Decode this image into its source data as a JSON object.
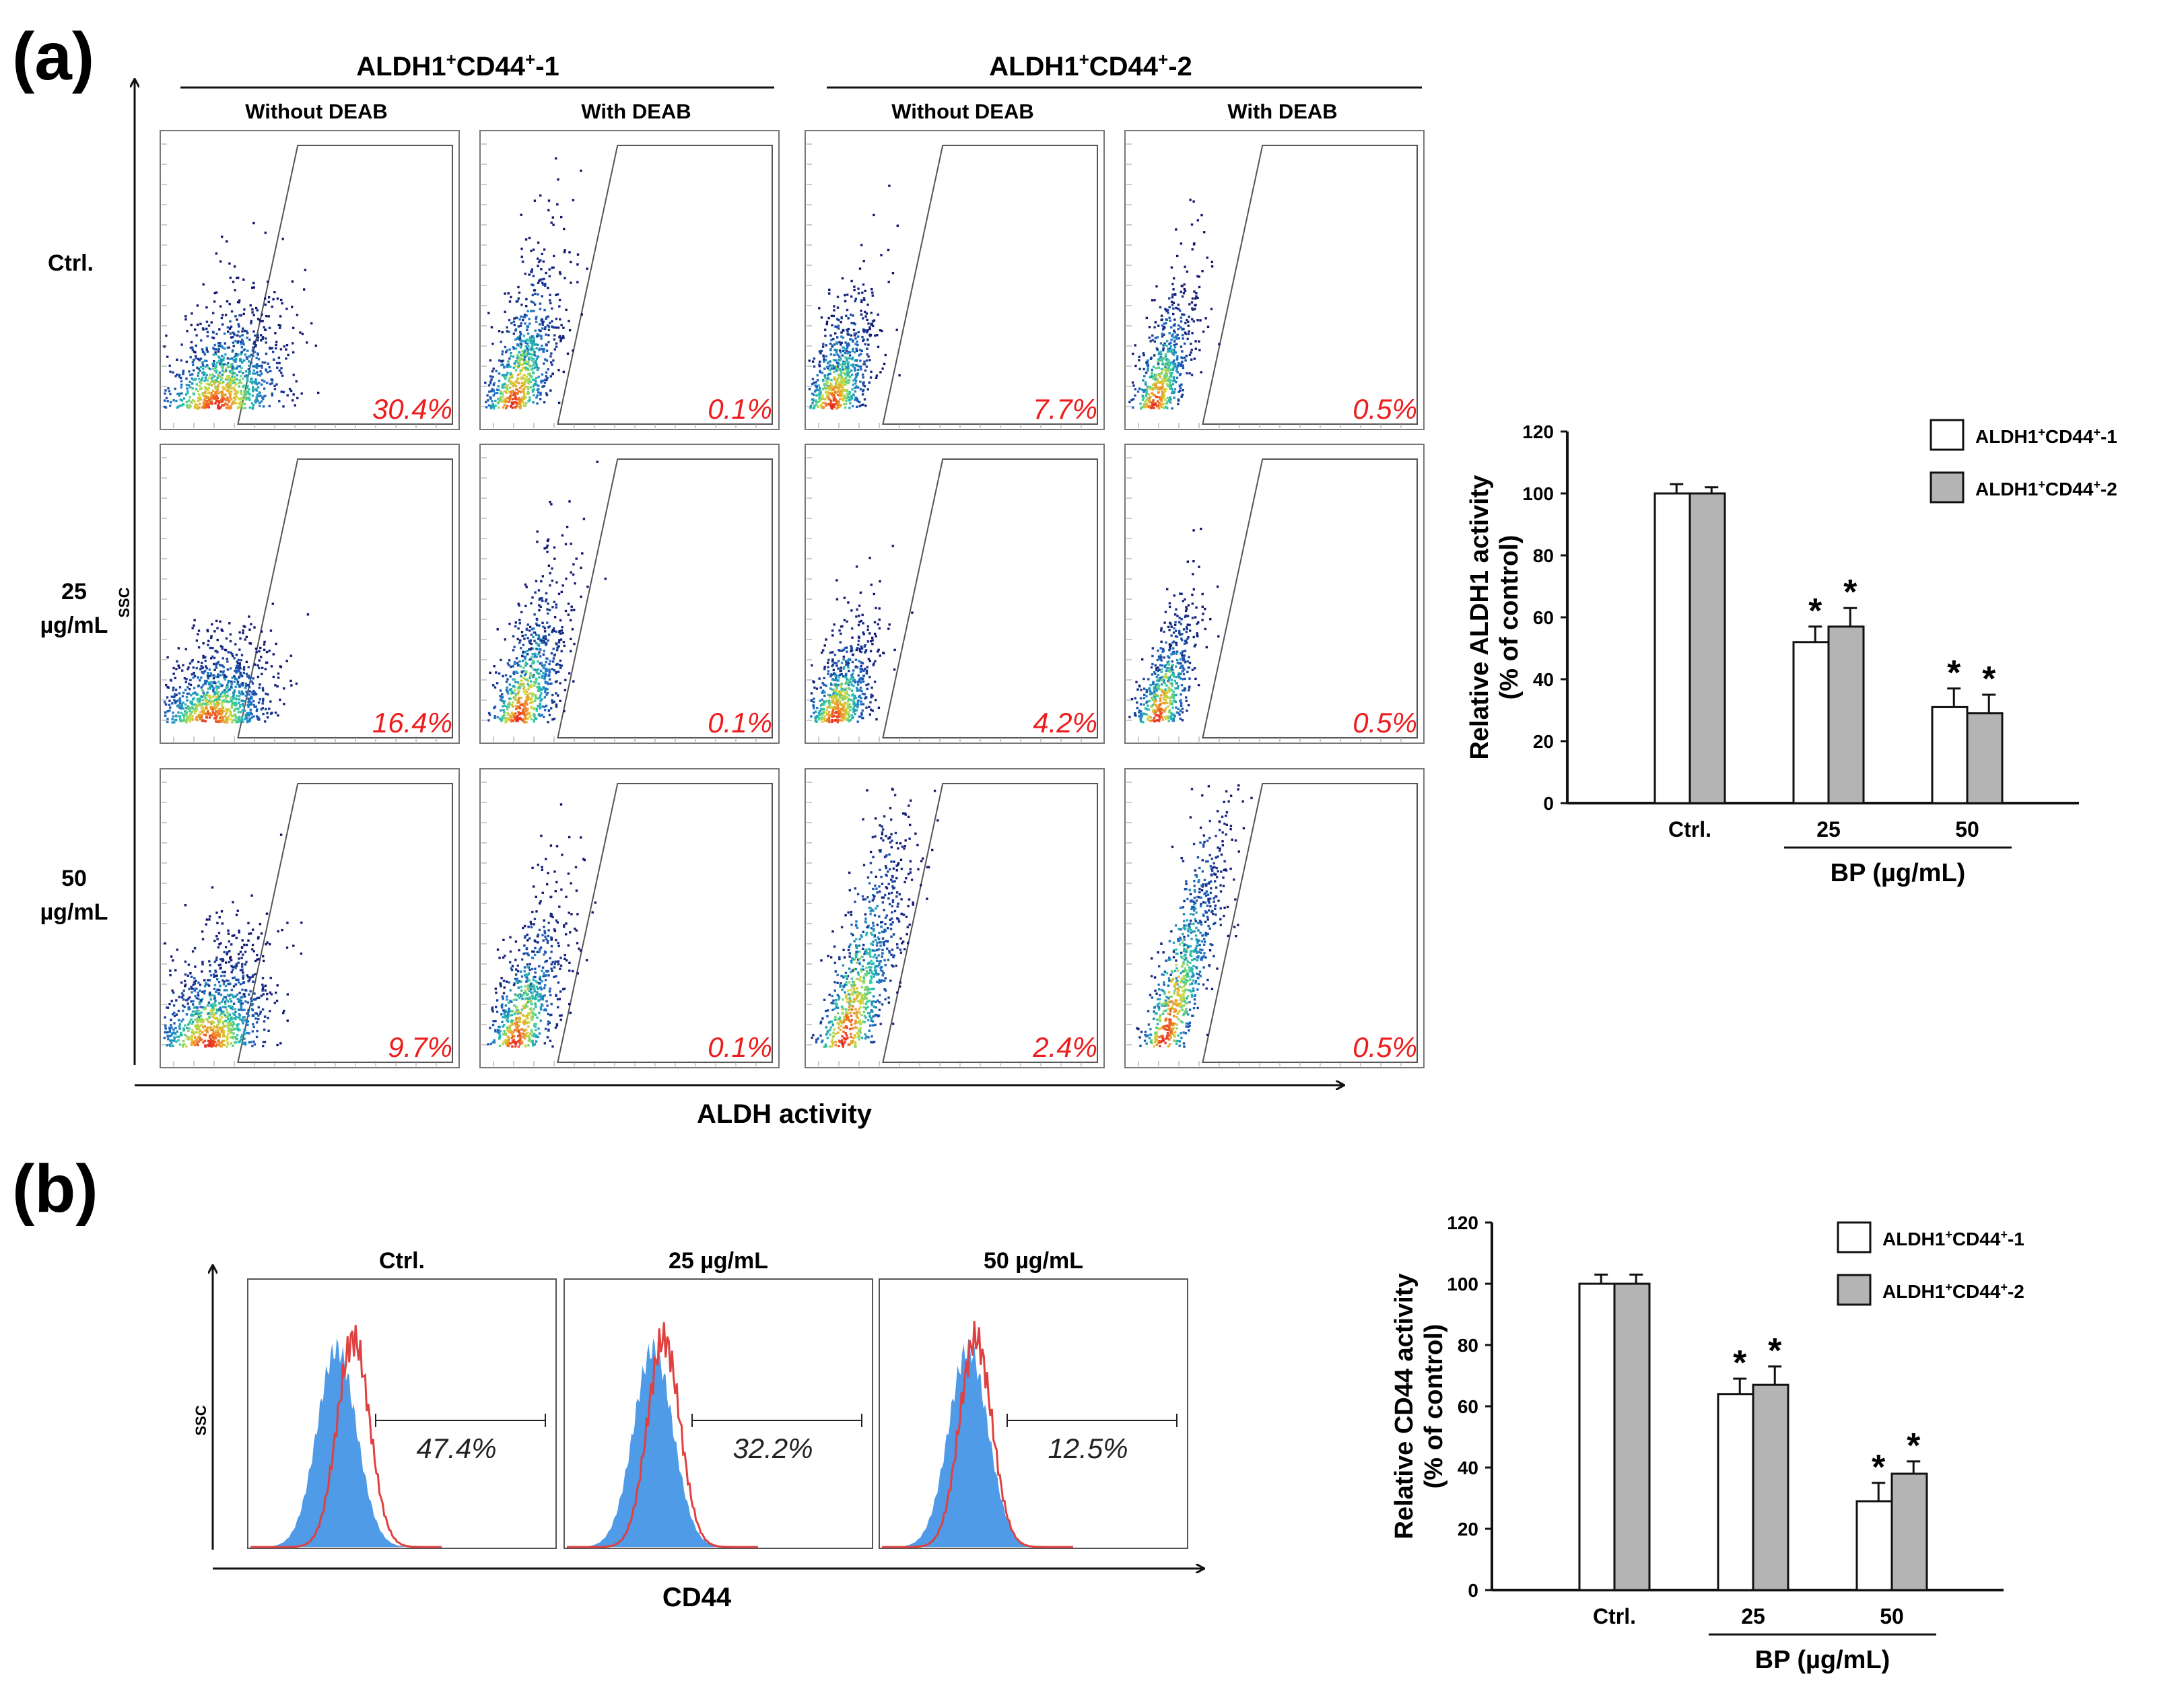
{
  "panel_a": {
    "label": "(a)",
    "groups": [
      {
        "name": "ALDH1",
        "sup": "+",
        "name2": "CD44",
        "sup2": "+",
        "suffix": "-1"
      },
      {
        "name": "ALDH1",
        "sup": "+",
        "name2": "CD44",
        "sup2": "+",
        "suffix": "-2"
      }
    ],
    "subcolumns": [
      "Without DEAB",
      "With DEAB",
      "Without DEAB",
      "With DEAB"
    ],
    "rows": [
      {
        "line1": "Ctrl.",
        "line2": ""
      },
      {
        "line1": "25",
        "line2": "µg/mL"
      },
      {
        "line1": "50",
        "line2": "µg/mL"
      }
    ],
    "y_axis_label": "SSC",
    "x_axis_label": "ALDH activity",
    "percentages": [
      [
        "30.4%",
        "0.1%",
        "7.7%",
        "0.5%"
      ],
      [
        "16.4%",
        "0.1%",
        "4.2%",
        "0.5%"
      ],
      [
        "9.7%",
        "0.1%",
        "2.4%",
        "0.5%"
      ]
    ]
  },
  "panel_b": {
    "label": "(b)",
    "histogram_titles": [
      "Ctrl.",
      "25  µg/mL",
      "50  µg/mL"
    ],
    "histogram_percentages": [
      "47.4%",
      "32.2%",
      "12.5%"
    ],
    "y_axis_label": "SSC",
    "x_axis_label": "CD44"
  },
  "legend": {
    "series1": {
      "name": "ALDH1",
      "sup": "+",
      "name2": "CD44",
      "sup2": "+",
      "suffix": "-1"
    },
    "series2": {
      "name": "ALDH1",
      "sup": "+",
      "name2": "CD44",
      "sup2": "+",
      "suffix": "-2"
    }
  },
  "colors": {
    "series1": "#ffffff",
    "series2": "#b4b4b4",
    "percent_red": "#ee1c1c",
    "histogram_fill": "#4f9be8",
    "histogram_line": "#e04040"
  },
  "chart_data": [
    {
      "type": "bar",
      "title": "",
      "categories": [
        "Ctrl.",
        "25",
        "50"
      ],
      "xlabel": "BP (µg/mL)",
      "ylabel_line1": "Relative ALDH1 activity",
      "ylabel_line2": "(% of control)",
      "ylim": [
        0,
        120
      ],
      "yticks": [
        0,
        20,
        40,
        60,
        80,
        100,
        120
      ],
      "series": [
        {
          "name": "ALDH1+CD44+-1",
          "values": [
            100,
            52,
            31
          ],
          "errors": [
            3,
            5,
            6
          ],
          "significant": [
            false,
            true,
            true
          ]
        },
        {
          "name": "ALDH1+CD44+-2",
          "values": [
            100,
            57,
            29
          ],
          "errors": [
            2,
            6,
            6
          ],
          "significant": [
            false,
            true,
            true
          ]
        }
      ],
      "significance_marker": "*"
    },
    {
      "type": "bar",
      "title": "",
      "categories": [
        "Ctrl.",
        "25",
        "50"
      ],
      "xlabel": "BP (µg/mL)",
      "ylabel_line1": "Relative CD44 activity",
      "ylabel_line2": "(% of control)",
      "ylim": [
        0,
        120
      ],
      "yticks": [
        0,
        20,
        40,
        60,
        80,
        100,
        120
      ],
      "series": [
        {
          "name": "ALDH1+CD44+-1",
          "values": [
            100,
            64,
            29
          ],
          "errors": [
            3,
            5,
            6
          ],
          "significant": [
            false,
            true,
            true
          ]
        },
        {
          "name": "ALDH1+CD44+-2",
          "values": [
            100,
            67,
            38
          ],
          "errors": [
            3,
            6,
            4
          ],
          "significant": [
            false,
            true,
            true
          ]
        }
      ],
      "significance_marker": "*"
    }
  ]
}
